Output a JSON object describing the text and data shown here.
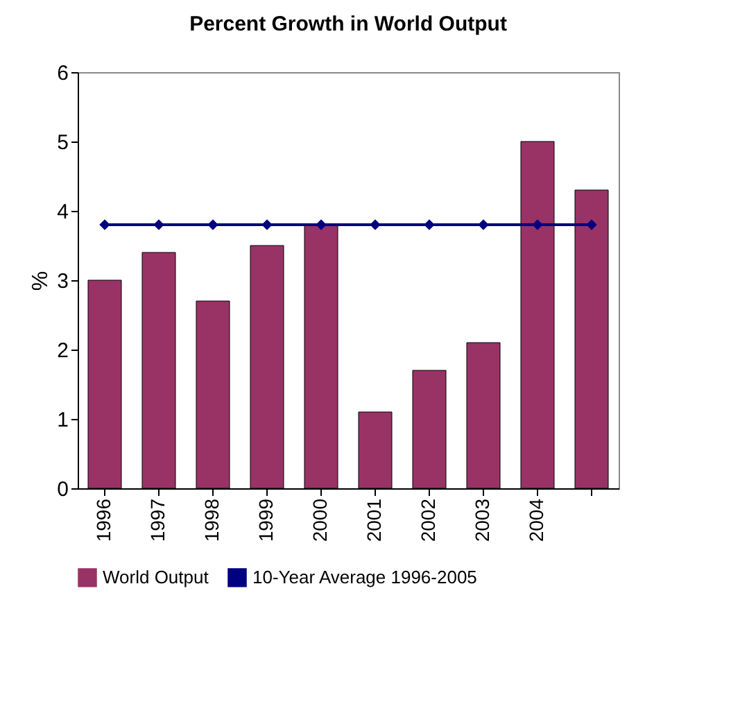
{
  "chart_data": {
    "type": "bar",
    "title": "Percent Growth in World Output",
    "ylabel": "%",
    "categories": [
      "1996",
      "1997",
      "1998",
      "1999",
      "2000",
      "2001",
      "2002",
      "2003",
      "2004",
      null
    ],
    "series": [
      {
        "name": "World Output",
        "color": "#993366",
        "values": [
          3.0,
          3.4,
          2.7,
          3.5,
          3.8,
          1.1,
          1.7,
          2.1,
          5.0,
          4.3
        ]
      },
      {
        "name": "10-Year Average 1996-2005",
        "type": "line",
        "color": "#000080",
        "marker": "diamond",
        "values": [
          3.8,
          3.8,
          3.8,
          3.8,
          3.8,
          3.8,
          3.8,
          3.8,
          3.8,
          3.8
        ]
      }
    ],
    "ylim": [
      0,
      6
    ],
    "yticks": [
      0,
      1,
      2,
      3,
      4,
      5,
      6
    ],
    "legend": "bottom"
  }
}
